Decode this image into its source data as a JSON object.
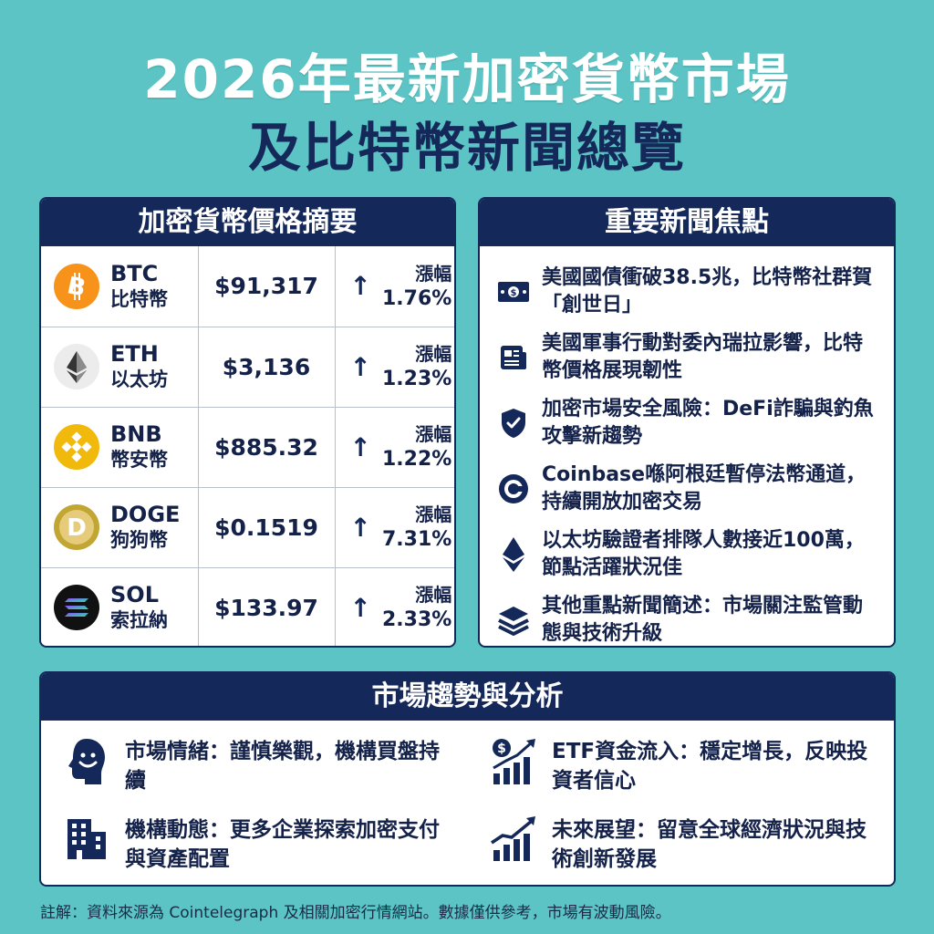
{
  "title": {
    "line1": "2026年最新加密貨幣市場",
    "line2": "及比特幣新聞總覽"
  },
  "prices": {
    "heading": "加密貨幣價格摘要",
    "rows": [
      {
        "symbol": "BTC",
        "name": "比特幣",
        "price": "$91,317",
        "change_label": "漲幅",
        "change": "1.76%",
        "icon": "bitcoin-icon",
        "color": "#f7931a"
      },
      {
        "symbol": "ETH",
        "name": "以太坊",
        "price": "$3,136",
        "change_label": "漲幅",
        "change": "1.23%",
        "icon": "ethereum-icon",
        "color": "#eeeeee"
      },
      {
        "symbol": "BNB",
        "name": "幣安幣",
        "price": "$885.32",
        "change_label": "漲幅",
        "change": "1.22%",
        "icon": "bnb-icon",
        "color": "#f0b90b"
      },
      {
        "symbol": "DOGE",
        "name": "狗狗幣",
        "price": "$0.1519",
        "change_label": "漲幅",
        "change": "7.31%",
        "icon": "dogecoin-icon",
        "color": "#d9b85a"
      },
      {
        "symbol": "SOL",
        "name": "索拉納",
        "price": "$133.97",
        "change_label": "漲幅",
        "change": "2.33%",
        "icon": "solana-icon",
        "color": "#111111"
      }
    ]
  },
  "news": {
    "heading": "重要新聞焦點",
    "items": [
      {
        "text": "美國國債衝破38.5兆，比特幣社群賀「創世日」",
        "icon": "money-bill-icon"
      },
      {
        "text": "美國軍事行動對委內瑞拉影響，比特幣價格展現韌性",
        "icon": "newspaper-icon"
      },
      {
        "text": "加密市場安全風險：DeFi詐騙與釣魚攻擊新趨勢",
        "icon": "shield-check-icon"
      },
      {
        "text": "Coinbase喺阿根廷暫停法幣通道，持續開放加密交易",
        "icon": "coinbase-icon"
      },
      {
        "text": "以太坊驗證者排隊人數接近100萬，節點活躍狀況佳",
        "icon": "ethereum-icon"
      },
      {
        "text": "其他重點新聞簡述：市場關注監管動態與技術升級",
        "icon": "layers-icon"
      }
    ]
  },
  "trends": {
    "heading": "市場趨勢與分析",
    "items": [
      {
        "text": "市場情緒：謹慎樂觀，機構買盤持續",
        "icon": "smiling-head-icon"
      },
      {
        "text": "ETF資金流入：穩定增長，反映投資者信心",
        "icon": "dollar-growth-chart-icon"
      },
      {
        "text": "機構動態：更多企業探索加密支付與資產配置",
        "icon": "office-building-icon"
      },
      {
        "text": "未來展望：留意全球經濟狀況與技術創新發展",
        "icon": "trend-up-chart-icon"
      }
    ]
  },
  "footnote": "註解：資料來源為 Cointelegraph 及相關加密行情網站。數據僅供參考，市場有波動風險。",
  "colors": {
    "background": "#5cc4c4",
    "navy": "#14285a"
  }
}
